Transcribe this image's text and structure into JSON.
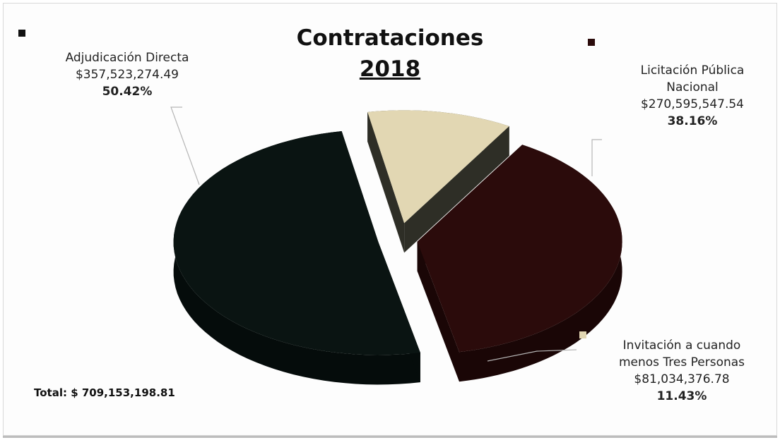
{
  "chart_data": {
    "type": "pie",
    "title": "Contrataciones",
    "subtitle": "2018",
    "slices": [
      {
        "label": "Adjudicación Directa",
        "label_lines": [
          "Adjudicación Directa"
        ],
        "amount": "$357,523,274.49",
        "value": 357523274.49,
        "percent": "50.42%",
        "color": "#0a1412",
        "side_color": "#050c0b"
      },
      {
        "label": "Licitación Pública Nacional",
        "label_lines": [
          "Licitación Pública",
          "Nacional"
        ],
        "amount": "$270,595,547.54",
        "value": 270595547.54,
        "percent": "38.16%",
        "color": "#2b0b0b",
        "side_color": "#1a0606"
      },
      {
        "label": "Invitación a cuando menos Tres Personas",
        "label_lines": [
          "Invitación a cuando",
          "menos Tres Personas"
        ],
        "amount": "$81,034,376.78",
        "value": 81034376.78,
        "percent": "11.43%",
        "color": "#e2d7b3",
        "side_color": "#2e2e26"
      }
    ],
    "total": "Total: $ 709,153,198.81",
    "legend": "none",
    "style": "3d-exploded"
  }
}
